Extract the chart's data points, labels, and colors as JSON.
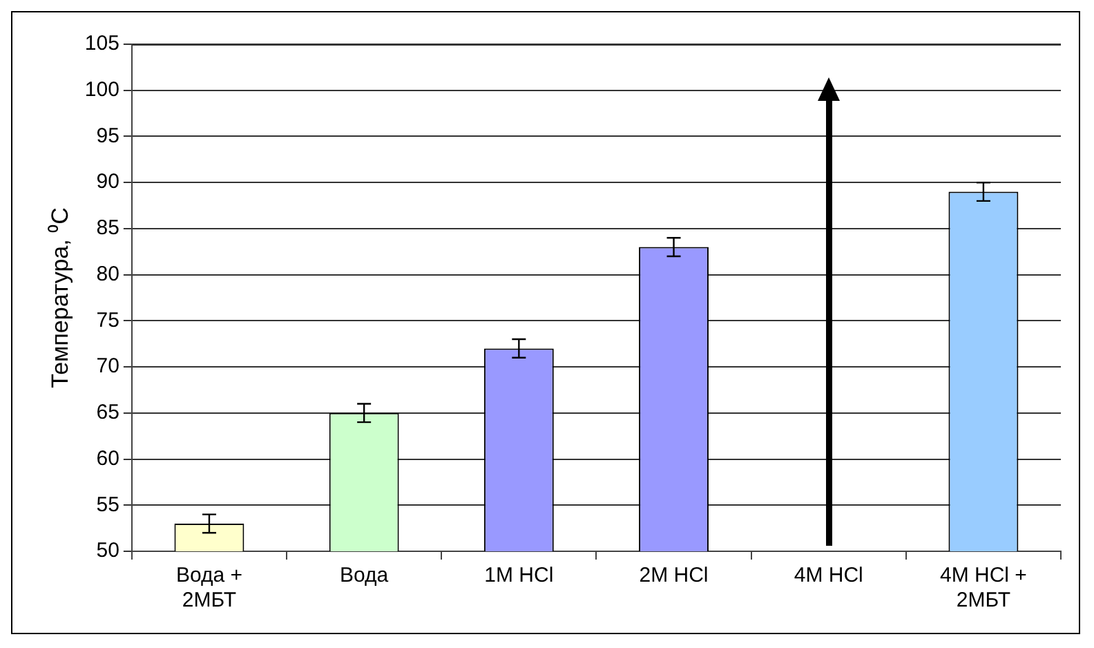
{
  "chart_data": {
    "type": "bar",
    "ylabel": "Температура, ⁰C",
    "categories": [
      "Вода + 2МБТ",
      "Вода",
      "1M HCl",
      "2M HCl",
      "4M HCl",
      "4M HCl + 2МБТ"
    ],
    "values": [
      53,
      65,
      72,
      83,
      null,
      89
    ],
    "colors": [
      "#ffffcc",
      "#ccffcc",
      "#9999ff",
      "#9999ff",
      "#9999ff",
      "#99ccff"
    ],
    "errors": [
      1,
      1,
      1,
      1,
      null,
      1
    ],
    "ylim": [
      50,
      105
    ],
    "yticks": [
      50,
      55,
      60,
      65,
      70,
      75,
      80,
      85,
      90,
      95,
      100,
      105
    ],
    "grid": "y"
  }
}
